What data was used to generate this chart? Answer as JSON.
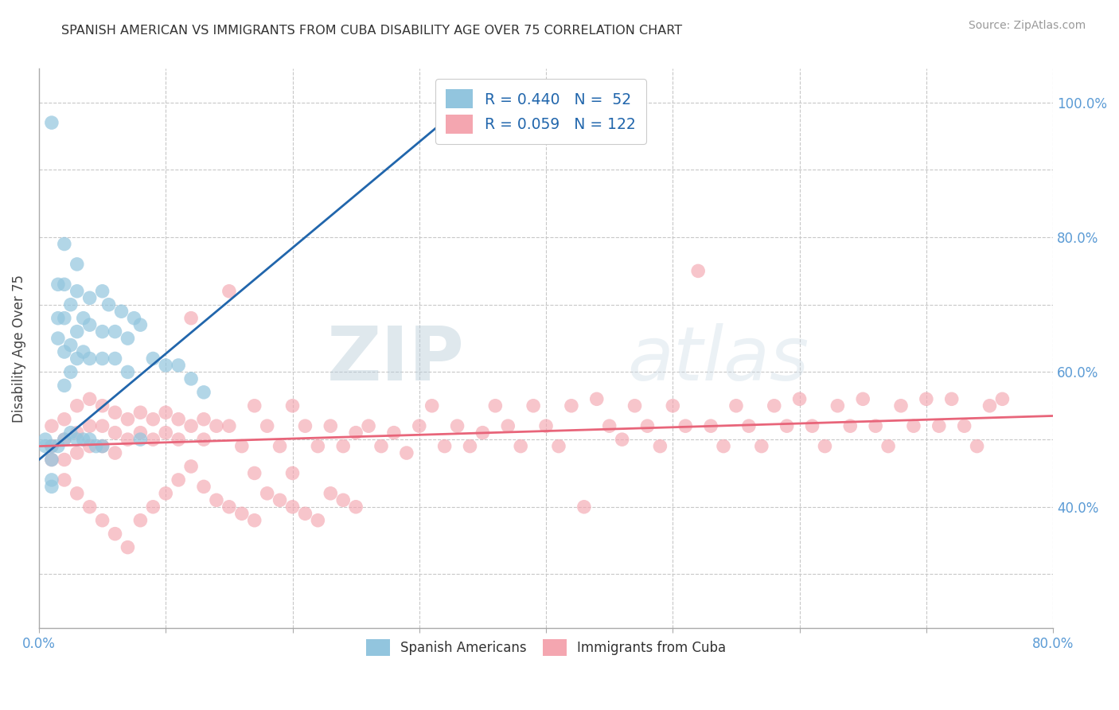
{
  "title": "SPANISH AMERICAN VS IMMIGRANTS FROM CUBA DISABILITY AGE OVER 75 CORRELATION CHART",
  "source": "Source: ZipAtlas.com",
  "ylabel": "Disability Age Over 75",
  "xlim": [
    0.0,
    0.8
  ],
  "ylim": [
    0.22,
    1.05
  ],
  "blue_R": 0.44,
  "blue_N": 52,
  "pink_R": 0.059,
  "pink_N": 122,
  "blue_color": "#92c5de",
  "pink_color": "#f4a6b0",
  "blue_line_color": "#2166ac",
  "pink_line_color": "#e8657a",
  "watermark_zip": "ZIP",
  "watermark_atlas": "atlas",
  "legend_label_blue": "Spanish Americans",
  "legend_label_pink": "Immigrants from Cuba",
  "blue_x": [
    0.005,
    0.01,
    0.01,
    0.01,
    0.01,
    0.015,
    0.015,
    0.015,
    0.02,
    0.02,
    0.02,
    0.02,
    0.02,
    0.025,
    0.025,
    0.025,
    0.03,
    0.03,
    0.03,
    0.03,
    0.035,
    0.035,
    0.04,
    0.04,
    0.04,
    0.05,
    0.05,
    0.05,
    0.055,
    0.06,
    0.06,
    0.065,
    0.07,
    0.07,
    0.075,
    0.08,
    0.09,
    0.1,
    0.11,
    0.12,
    0.13,
    0.005,
    0.01,
    0.015,
    0.02,
    0.025,
    0.03,
    0.035,
    0.04,
    0.045,
    0.05,
    0.08
  ],
  "blue_y": [
    0.5,
    0.97,
    0.47,
    0.44,
    0.43,
    0.73,
    0.68,
    0.65,
    0.79,
    0.73,
    0.68,
    0.63,
    0.58,
    0.7,
    0.64,
    0.6,
    0.76,
    0.72,
    0.66,
    0.62,
    0.68,
    0.63,
    0.71,
    0.67,
    0.62,
    0.72,
    0.66,
    0.62,
    0.7,
    0.66,
    0.62,
    0.69,
    0.65,
    0.6,
    0.68,
    0.67,
    0.62,
    0.61,
    0.61,
    0.59,
    0.57,
    0.49,
    0.49,
    0.49,
    0.5,
    0.51,
    0.5,
    0.5,
    0.5,
    0.49,
    0.49,
    0.5
  ],
  "pink_x": [
    0.01,
    0.01,
    0.01,
    0.02,
    0.02,
    0.02,
    0.03,
    0.03,
    0.03,
    0.04,
    0.04,
    0.04,
    0.05,
    0.05,
    0.05,
    0.06,
    0.06,
    0.06,
    0.07,
    0.07,
    0.08,
    0.08,
    0.09,
    0.09,
    0.1,
    0.1,
    0.11,
    0.11,
    0.12,
    0.12,
    0.13,
    0.13,
    0.14,
    0.15,
    0.15,
    0.16,
    0.17,
    0.17,
    0.18,
    0.19,
    0.2,
    0.2,
    0.21,
    0.22,
    0.23,
    0.24,
    0.25,
    0.26,
    0.27,
    0.28,
    0.29,
    0.3,
    0.31,
    0.32,
    0.33,
    0.34,
    0.35,
    0.36,
    0.37,
    0.38,
    0.39,
    0.4,
    0.41,
    0.42,
    0.43,
    0.44,
    0.45,
    0.46,
    0.47,
    0.48,
    0.49,
    0.5,
    0.51,
    0.52,
    0.53,
    0.54,
    0.55,
    0.56,
    0.57,
    0.58,
    0.59,
    0.6,
    0.61,
    0.62,
    0.63,
    0.64,
    0.65,
    0.66,
    0.67,
    0.68,
    0.69,
    0.7,
    0.71,
    0.72,
    0.73,
    0.74,
    0.75,
    0.76,
    0.02,
    0.03,
    0.04,
    0.05,
    0.06,
    0.07,
    0.08,
    0.09,
    0.1,
    0.11,
    0.12,
    0.13,
    0.14,
    0.15,
    0.16,
    0.17,
    0.18,
    0.19,
    0.2,
    0.21,
    0.22,
    0.23,
    0.24,
    0.25
  ],
  "pink_y": [
    0.52,
    0.49,
    0.47,
    0.53,
    0.5,
    0.47,
    0.55,
    0.51,
    0.48,
    0.56,
    0.52,
    0.49,
    0.55,
    0.52,
    0.49,
    0.54,
    0.51,
    0.48,
    0.53,
    0.5,
    0.54,
    0.51,
    0.53,
    0.5,
    0.54,
    0.51,
    0.53,
    0.5,
    0.68,
    0.52,
    0.53,
    0.5,
    0.52,
    0.72,
    0.52,
    0.49,
    0.55,
    0.45,
    0.52,
    0.49,
    0.55,
    0.45,
    0.52,
    0.49,
    0.52,
    0.49,
    0.51,
    0.52,
    0.49,
    0.51,
    0.48,
    0.52,
    0.55,
    0.49,
    0.52,
    0.49,
    0.51,
    0.55,
    0.52,
    0.49,
    0.55,
    0.52,
    0.49,
    0.55,
    0.4,
    0.56,
    0.52,
    0.5,
    0.55,
    0.52,
    0.49,
    0.55,
    0.52,
    0.75,
    0.52,
    0.49,
    0.55,
    0.52,
    0.49,
    0.55,
    0.52,
    0.56,
    0.52,
    0.49,
    0.55,
    0.52,
    0.56,
    0.52,
    0.49,
    0.55,
    0.52,
    0.56,
    0.52,
    0.56,
    0.52,
    0.49,
    0.55,
    0.56,
    0.44,
    0.42,
    0.4,
    0.38,
    0.36,
    0.34,
    0.38,
    0.4,
    0.42,
    0.44,
    0.46,
    0.43,
    0.41,
    0.4,
    0.39,
    0.38,
    0.42,
    0.41,
    0.4,
    0.39,
    0.38,
    0.42,
    0.41,
    0.4
  ],
  "blue_line": [
    0.0,
    0.35,
    0.47,
    1.02
  ],
  "pink_line": [
    0.0,
    0.8,
    0.49,
    0.535
  ]
}
